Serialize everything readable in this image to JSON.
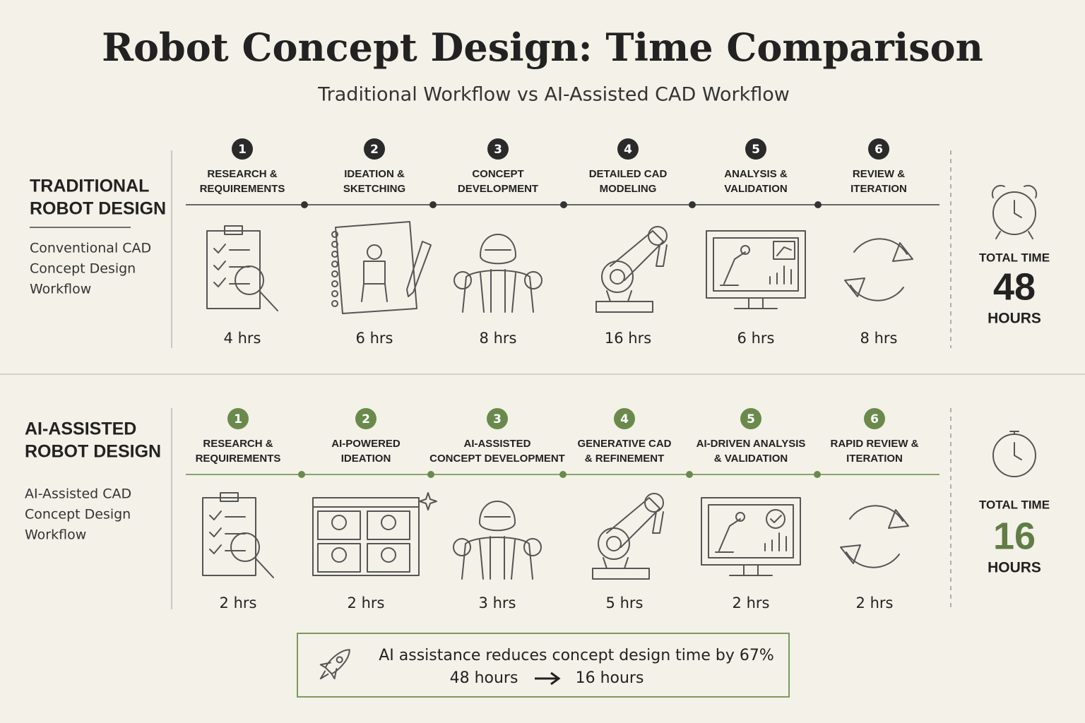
{
  "header": {
    "title": "Robot Concept Design: Time Comparison",
    "subtitle": "Traditional Workflow vs AI-Assisted CAD Workflow"
  },
  "rows": [
    {
      "title_lines": [
        "TRADITIONAL",
        "ROBOT DESIGN"
      ],
      "description_lines": [
        "Conventional CAD",
        "Concept Design",
        "Workflow"
      ],
      "steps": [
        {
          "number": 1,
          "label_lines": [
            "RESEARCH &",
            "REQUIREMENTS"
          ],
          "time": "4 hrs"
        },
        {
          "number": 2,
          "label_lines": [
            "IDEATION &",
            "SKETCHING"
          ],
          "time": "6 hrs"
        },
        {
          "number": 3,
          "label_lines": [
            "CONCEPT",
            "DEVELOPMENT"
          ],
          "time": "8 hrs"
        },
        {
          "number": 4,
          "label_lines": [
            "DETAILED CAD",
            "MODELING"
          ],
          "time": "16 hrs"
        },
        {
          "number": 5,
          "label_lines": [
            "ANALYSIS &",
            "VALIDATION"
          ],
          "time": "6 hrs"
        },
        {
          "number": 6,
          "label_lines": [
            "REVIEW &",
            "ITERATION"
          ],
          "time": "8 hrs"
        }
      ],
      "total": {
        "label": "TOTAL TIME",
        "value": 48,
        "unit": "HOURS"
      }
    },
    {
      "title_lines": [
        "AI-ASSISTED",
        "ROBOT DESIGN"
      ],
      "description_lines": [
        "AI-Assisted CAD",
        "Concept Design",
        "Workflow"
      ],
      "steps": [
        {
          "number": 1,
          "label_lines": [
            "RESEARCH &",
            "REQUIREMENTS"
          ],
          "time": "2 hrs"
        },
        {
          "number": 2,
          "label_lines": [
            "AI-POWERED",
            "IDEATION"
          ],
          "time": "2 hrs"
        },
        {
          "number": 3,
          "label_lines": [
            "AI-ASSISTED",
            "CONCEPT DEVELOPMENT"
          ],
          "time": "3 hrs"
        },
        {
          "number": 4,
          "label_lines": [
            "GENERATIVE CAD",
            "& REFINEMENT"
          ],
          "time": "5 hrs"
        },
        {
          "number": 5,
          "label_lines": [
            "AI-DRIVEN ANALYSIS",
            "& VALIDATION"
          ],
          "time": "2 hrs"
        },
        {
          "number": 6,
          "label_lines": [
            "RAPID REVIEW &",
            "ITERATION"
          ],
          "time": "2 hrs"
        }
      ],
      "total": {
        "label": "TOTAL TIME",
        "value": 16,
        "unit": "HOURS"
      }
    }
  ],
  "summary": {
    "text": "AI assistance reduces concept design time by 67%",
    "from": "48 hours",
    "to": "16 hours"
  }
}
